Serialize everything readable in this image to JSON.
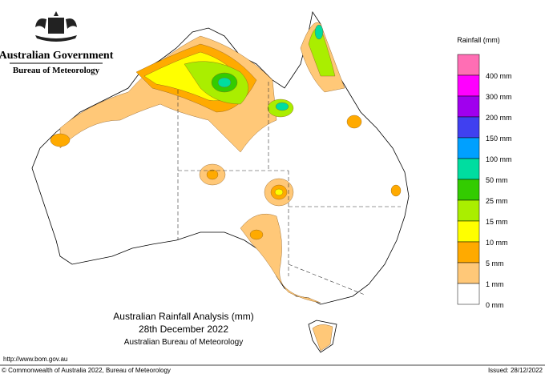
{
  "header": {
    "government": "Australian Government",
    "agency": "Bureau of Meteorology"
  },
  "legend": {
    "title": "Rainfall (mm)",
    "colors": [
      "#ff6eb4",
      "#ff00ff",
      "#a000ee",
      "#4040f0",
      "#00a0ff",
      "#00dda0",
      "#33cc00",
      "#aaee00",
      "#ffff00",
      "#ffaa00",
      "#ffc878",
      "#ffffff"
    ],
    "labels": [
      "400 mm",
      "300 mm",
      "200 mm",
      "150 mm",
      "100 mm",
      "50 mm",
      "25 mm",
      "15 mm",
      "10 mm",
      "5 mm",
      "1 mm",
      "0 mm"
    ]
  },
  "caption": {
    "title": "Australian Rainfall Analysis (mm)",
    "date": "28th December 2022",
    "source": "Australian Bureau of Meteorology"
  },
  "footer": {
    "url": "http://www.bom.gov.au",
    "copyright": "© Commonwealth of Australia 2022, Bureau of Meteorology",
    "issued": "Issued: 28/12/2022"
  }
}
